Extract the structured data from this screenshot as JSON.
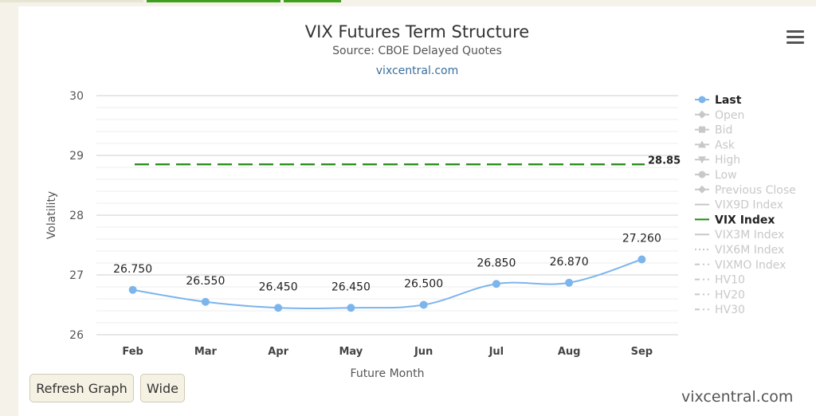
{
  "tabs": [
    {
      "color": "#e8e4d4"
    },
    {
      "color": "#3f9f1f"
    },
    {
      "color": "#3f9f1f"
    }
  ],
  "header": {
    "title": "VIX Futures Term Structure",
    "subtitle": "Source: CBOE Delayed Quotes",
    "credit": "vixcentral.com"
  },
  "menu": {
    "icon": "hamburger-menu-icon"
  },
  "buttons": {
    "refresh_label": "Refresh Graph",
    "wide_label": "Wide"
  },
  "watermark": "vixcentral.com",
  "chart_data": {
    "type": "line",
    "title": "VIX Futures Term Structure",
    "subtitle": "Source: CBOE Delayed Quotes",
    "xlabel": "Future Month",
    "ylabel": "Volatility",
    "categories": [
      "Feb",
      "Mar",
      "Apr",
      "May",
      "Jun",
      "Jul",
      "Aug",
      "Sep"
    ],
    "ylim": [
      26,
      30
    ],
    "yticks": [
      "26",
      "27",
      "28",
      "29",
      "30"
    ],
    "grid": true,
    "legend_position": "right",
    "series": [
      {
        "name": "Last",
        "values": [
          26.75,
          26.55,
          26.45,
          26.45,
          26.5,
          26.85,
          26.87,
          27.26
        ],
        "labels": [
          "26.750",
          "26.550",
          "26.450",
          "26.450",
          "26.500",
          "26.850",
          "26.870",
          "27.260"
        ],
        "color": "#7cb5ec",
        "style": "spline-markers"
      },
      {
        "name": "VIX Index",
        "value": 28.85,
        "label": "28.85",
        "color": "#1f8a10",
        "style": "dashed"
      }
    ],
    "legend": [
      {
        "name": "Last",
        "active": true,
        "symbol": "circle",
        "color": "#7cb5ec"
      },
      {
        "name": "Open",
        "active": false,
        "symbol": "diamond"
      },
      {
        "name": "Bid",
        "active": false,
        "symbol": "square"
      },
      {
        "name": "Ask",
        "active": false,
        "symbol": "triangle"
      },
      {
        "name": "High",
        "active": false,
        "symbol": "triangle-down"
      },
      {
        "name": "Low",
        "active": false,
        "symbol": "circle"
      },
      {
        "name": "Previous Close",
        "active": false,
        "symbol": "diamond"
      },
      {
        "name": "VIX9D Index",
        "active": false,
        "symbol": "line"
      },
      {
        "name": "VIX Index",
        "active": true,
        "symbol": "line",
        "color": "#1f8a10"
      },
      {
        "name": "VIX3M Index",
        "active": false,
        "symbol": "line"
      },
      {
        "name": "VIX6M Index",
        "active": false,
        "symbol": "dotted"
      },
      {
        "name": "VIXMO Index",
        "active": false,
        "symbol": "dashdot"
      },
      {
        "name": "HV10",
        "active": false,
        "symbol": "dashdot"
      },
      {
        "name": "HV20",
        "active": false,
        "symbol": "dashdot"
      },
      {
        "name": "HV30",
        "active": false,
        "symbol": "dashdot"
      }
    ]
  }
}
